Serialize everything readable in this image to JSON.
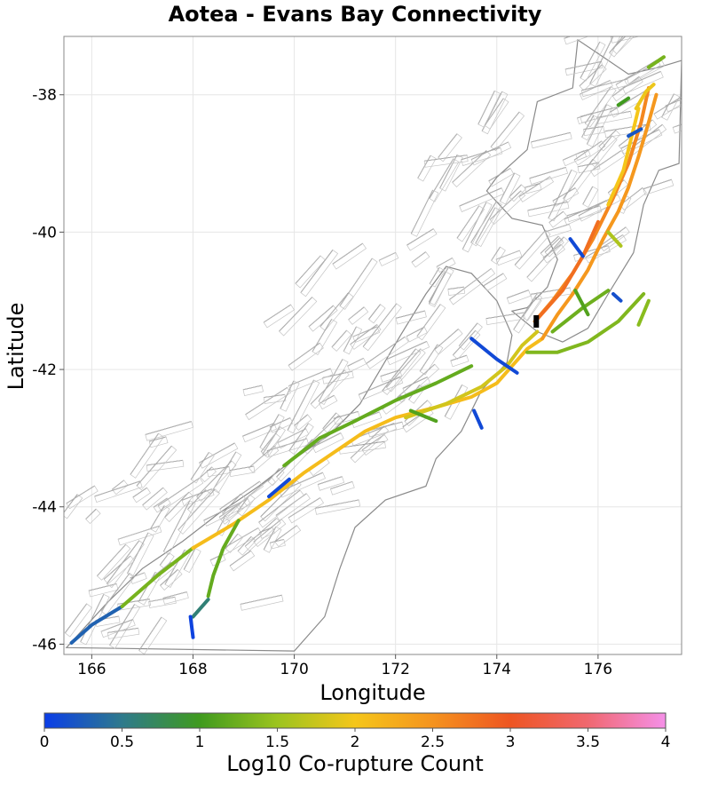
{
  "chart_data": {
    "type": "map",
    "title": "Aotea - Evans Bay Connectivity",
    "xlabel": "Longitude",
    "ylabel": "Latitude",
    "xlim": [
      165.45,
      177.65
    ],
    "ylim": [
      -46.15,
      -37.15
    ],
    "xticks": [
      166,
      168,
      170,
      172,
      174,
      176
    ],
    "yticks": [
      -38,
      -40,
      -42,
      -44,
      -46
    ],
    "xtick_labels": [
      "166",
      "168",
      "170",
      "172",
      "174",
      "176"
    ],
    "ytick_labels": [
      "-38",
      "-40",
      "-42",
      "-44",
      "-46"
    ],
    "grid": true,
    "colorbar": {
      "label": "Log10 Co-rupture Count",
      "range": [
        0,
        4
      ],
      "ticks": [
        0,
        0.5,
        1,
        1.5,
        2,
        2.5,
        3,
        3.5,
        4
      ],
      "tick_labels": [
        "0",
        "0.5",
        "1",
        "1.5",
        "2",
        "2.5",
        "3",
        "3.5",
        "4"
      ],
      "colors": [
        "#0a3de8",
        "#2e7a8c",
        "#3f9a1e",
        "#9cc41e",
        "#f5c61a",
        "#f5931e",
        "#ee5522",
        "#f06870",
        "#f590e8"
      ]
    },
    "source_fault": {
      "name": "Aotea - Evans Bay",
      "lon": 174.78,
      "lat": -41.3,
      "color": "#000000"
    },
    "colored_faults": [
      {
        "points": [
          [
            165.6,
            -45.98
          ],
          [
            166.0,
            -45.72
          ],
          [
            166.6,
            -45.45
          ]
        ],
        "value": 0.3
      },
      {
        "points": [
          [
            166.6,
            -45.45
          ],
          [
            167.3,
            -45.0
          ],
          [
            168.0,
            -44.6
          ]
        ],
        "value": 1.3
      },
      {
        "points": [
          [
            168.0,
            -44.6
          ],
          [
            168.8,
            -44.25
          ],
          [
            169.5,
            -43.9
          ],
          [
            170.2,
            -43.5
          ],
          [
            170.8,
            -43.2
          ],
          [
            171.4,
            -42.9
          ],
          [
            172.0,
            -42.7
          ],
          [
            172.8,
            -42.55
          ],
          [
            173.5,
            -42.4
          ],
          [
            174.0,
            -42.2
          ],
          [
            174.3,
            -41.95
          ],
          [
            174.6,
            -41.7
          ],
          [
            174.9,
            -41.55
          ]
        ],
        "value": 2.1
      },
      {
        "points": [
          [
            174.9,
            -41.55
          ],
          [
            175.2,
            -41.2
          ],
          [
            175.5,
            -40.9
          ],
          [
            175.8,
            -40.55
          ],
          [
            176.1,
            -40.1
          ],
          [
            176.4,
            -39.7
          ],
          [
            176.6,
            -39.35
          ],
          [
            176.8,
            -38.9
          ],
          [
            177.0,
            -38.4
          ],
          [
            177.15,
            -38.0
          ]
        ],
        "value": 2.45
      },
      {
        "points": [
          [
            174.75,
            -41.3
          ],
          [
            175.1,
            -41.0
          ],
          [
            175.5,
            -40.6
          ],
          [
            175.9,
            -40.1
          ],
          [
            176.3,
            -39.5
          ],
          [
            176.6,
            -39.0
          ],
          [
            176.85,
            -38.4
          ],
          [
            177.0,
            -37.9
          ]
        ],
        "value": 2.6
      },
      {
        "points": [
          [
            174.78,
            -41.28
          ],
          [
            175.3,
            -40.85
          ],
          [
            175.7,
            -40.35
          ],
          [
            176.0,
            -39.85
          ]
        ],
        "value": 2.8
      },
      {
        "points": [
          [
            176.2,
            -39.6
          ],
          [
            176.5,
            -39.1
          ],
          [
            176.7,
            -38.5
          ],
          [
            176.8,
            -38.2
          ]
        ],
        "value": 2.0
      },
      {
        "points": [
          [
            176.75,
            -38.2
          ],
          [
            176.95,
            -37.95
          ],
          [
            177.1,
            -37.85
          ]
        ],
        "value": 1.95
      },
      {
        "points": [
          [
            169.8,
            -43.4
          ],
          [
            170.5,
            -43.0
          ],
          [
            171.2,
            -42.75
          ],
          [
            172.0,
            -42.45
          ],
          [
            172.8,
            -42.2
          ],
          [
            173.5,
            -41.95
          ]
        ],
        "value": 1.2
      },
      {
        "points": [
          [
            172.2,
            -42.7
          ],
          [
            173.0,
            -42.5
          ],
          [
            173.7,
            -42.25
          ],
          [
            174.2,
            -41.95
          ],
          [
            174.5,
            -41.65
          ],
          [
            174.8,
            -41.45
          ]
        ],
        "value": 1.8
      },
      {
        "points": [
          [
            174.6,
            -41.75
          ],
          [
            175.2,
            -41.75
          ],
          [
            175.8,
            -41.6
          ],
          [
            176.4,
            -41.3
          ],
          [
            176.9,
            -40.9
          ]
        ],
        "value": 1.35
      },
      {
        "points": [
          [
            175.1,
            -41.45
          ],
          [
            175.7,
            -41.1
          ],
          [
            176.2,
            -40.85
          ]
        ],
        "value": 1.25
      },
      {
        "points": [
          [
            168.9,
            -44.2
          ],
          [
            168.6,
            -44.6
          ],
          [
            168.4,
            -45.0
          ],
          [
            168.3,
            -45.3
          ]
        ],
        "value": 1.2
      },
      {
        "points": [
          [
            168.3,
            -45.35
          ],
          [
            168.0,
            -45.6
          ]
        ],
        "value": 0.6
      },
      {
        "points": [
          [
            167.95,
            -45.6
          ],
          [
            168.0,
            -45.9
          ]
        ],
        "value": 0.05
      },
      {
        "points": [
          [
            173.5,
            -41.55
          ],
          [
            174.0,
            -41.85
          ],
          [
            174.4,
            -42.05
          ]
        ],
        "value": 0.1
      },
      {
        "points": [
          [
            169.9,
            -43.6
          ],
          [
            169.5,
            -43.85
          ]
        ],
        "value": 0.1
      },
      {
        "points": [
          [
            175.45,
            -40.1
          ],
          [
            175.7,
            -40.35
          ]
        ],
        "value": 0.1
      },
      {
        "points": [
          [
            175.55,
            -40.85
          ],
          [
            175.8,
            -41.2
          ]
        ],
        "value": 1.1
      },
      {
        "points": [
          [
            176.2,
            -40.0
          ],
          [
            176.45,
            -40.2
          ]
        ],
        "value": 1.6
      },
      {
        "points": [
          [
            176.6,
            -38.6
          ],
          [
            176.85,
            -38.5
          ]
        ],
        "value": 0.2
      },
      {
        "points": [
          [
            176.4,
            -38.15
          ],
          [
            176.6,
            -38.05
          ]
        ],
        "value": 1.0
      },
      {
        "points": [
          [
            177.0,
            -37.6
          ],
          [
            177.3,
            -37.45
          ]
        ],
        "value": 1.3
      },
      {
        "points": [
          [
            173.55,
            -42.6
          ],
          [
            173.7,
            -42.85
          ]
        ],
        "value": 0.1
      },
      {
        "points": [
          [
            172.3,
            -42.6
          ],
          [
            172.8,
            -42.75
          ]
        ],
        "value": 1.1
      },
      {
        "points": [
          [
            176.8,
            -41.35
          ],
          [
            177.0,
            -41.0
          ]
        ],
        "value": 1.4
      },
      {
        "points": [
          [
            176.3,
            -40.9
          ],
          [
            176.45,
            -41.0
          ]
        ],
        "value": 0.15
      }
    ]
  }
}
